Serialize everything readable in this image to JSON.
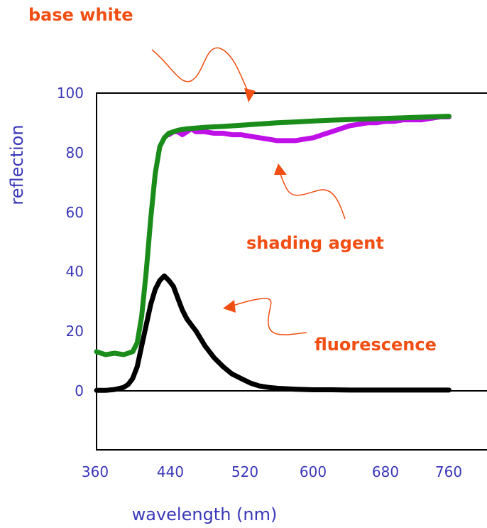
{
  "chart_data": {
    "type": "line",
    "xlabel": "wavelength (nm)",
    "ylabel": "reflection",
    "xlim": [
      360,
      800
    ],
    "ylim": [
      -20,
      100
    ],
    "x_ticks": [
      "360",
      "440",
      "520",
      "600",
      "680",
      "760"
    ],
    "y_ticks": [
      "0",
      "20",
      "40",
      "60",
      "80",
      "100"
    ],
    "grid": false,
    "series": [
      {
        "color": "#c010e8",
        "x": [
          440,
          445,
          450,
          455,
          460,
          465,
          470,
          480,
          490,
          500,
          510,
          520,
          530,
          540,
          550,
          560,
          570,
          580,
          590,
          600,
          610,
          620,
          630,
          640,
          650,
          660,
          670,
          680,
          690,
          700,
          710,
          720,
          730,
          740,
          750
        ],
        "y": [
          86,
          87,
          87,
          86,
          87,
          88,
          87,
          87,
          86.5,
          86.5,
          86,
          86,
          85.5,
          85,
          84.5,
          84,
          84,
          84,
          84.5,
          85,
          86,
          87,
          88,
          89,
          89.5,
          90,
          90,
          90.5,
          90.5,
          91,
          91,
          91,
          91.5,
          92,
          92
        ]
      },
      {
        "color": "#1a8c1a",
        "x": [
          360,
          370,
          380,
          390,
          400,
          405,
          410,
          415,
          420,
          425,
          430,
          435,
          440,
          445,
          450,
          460,
          480,
          500,
          520,
          540,
          560,
          580,
          600,
          620,
          640,
          660,
          680,
          700,
          720,
          740,
          750
        ],
        "y": [
          13,
          12,
          12.5,
          12,
          13,
          16,
          25,
          40,
          58,
          73,
          82,
          85,
          86.5,
          87,
          87.5,
          88,
          88.5,
          88.8,
          89.2,
          89.6,
          90,
          90.3,
          90.6,
          90.9,
          91.1,
          91.3,
          91.5,
          91.7,
          91.9,
          92.1,
          92.2
        ]
      },
      {
        "color": "#000000",
        "x": [
          360,
          370,
          380,
          390,
          395,
          400,
          405,
          410,
          415,
          420,
          425,
          430,
          435,
          440,
          445,
          450,
          455,
          460,
          465,
          470,
          480,
          490,
          500,
          510,
          520,
          530,
          540,
          550,
          560,
          580,
          600,
          620,
          640,
          660,
          680,
          700,
          720,
          740,
          750
        ],
        "y": [
          0,
          0,
          0.3,
          1,
          2,
          4,
          8,
          15,
          22,
          29,
          34,
          37,
          38.5,
          37,
          35,
          31,
          27,
          24,
          22,
          20,
          15,
          11,
          8,
          5.5,
          4,
          2.5,
          1.5,
          1,
          0.7,
          0.4,
          0.2,
          0.2,
          0.1,
          0.1,
          0.1,
          0.1,
          0.1,
          0.1,
          0.1
        ]
      }
    ],
    "annotations": [
      {
        "text": "base white"
      },
      {
        "text": "shading agent"
      },
      {
        "text": "fluorescence"
      }
    ]
  }
}
